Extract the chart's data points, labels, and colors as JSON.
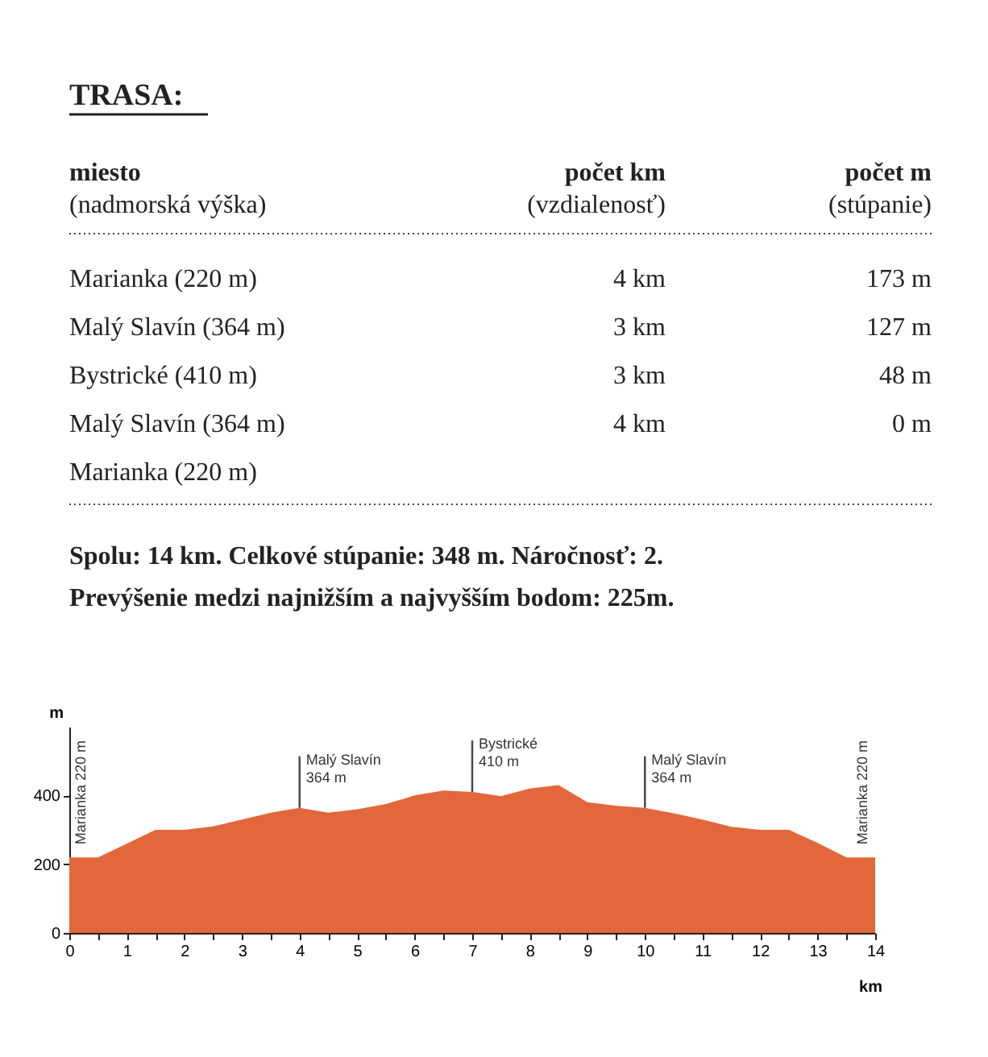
{
  "chart_data": {
    "type": "area",
    "title": "TRASA:",
    "x": [
      0,
      0.5,
      1.5,
      2,
      2.5,
      3,
      3.5,
      4,
      4.5,
      5,
      5.5,
      6,
      6.5,
      7,
      7.5,
      8,
      8.5,
      9,
      9.5,
      10,
      10.5,
      11,
      11.5,
      12,
      12.5,
      13,
      13.5,
      14
    ],
    "values": [
      220,
      220,
      300,
      300,
      310,
      330,
      350,
      364,
      350,
      360,
      375,
      400,
      414,
      410,
      398,
      420,
      430,
      380,
      370,
      364,
      348,
      330,
      309,
      300,
      300,
      262,
      220,
      220
    ],
    "color": "#e2673a",
    "xlabel": "km",
    "ylabel": "m",
    "xlim": [
      0,
      14
    ],
    "ylim": [
      0,
      600
    ],
    "xticks": [
      0,
      {
        "value": 0.5,
        "label": null
      },
      1,
      {
        "value": 1.5,
        "label": null
      },
      2,
      {
        "value": 2.5,
        "label": null
      },
      3,
      {
        "value": 3.5,
        "label": null
      },
      4,
      {
        "value": 4.5,
        "label": null
      },
      5,
      {
        "value": 5.5,
        "label": null
      },
      6,
      {
        "value": 6.5,
        "label": null
      },
      7,
      {
        "value": 7.5,
        "label": null
      },
      8,
      {
        "value": 8.5,
        "label": null
      },
      9,
      {
        "value": 9.5,
        "label": null
      },
      10,
      {
        "value": 10.5,
        "label": null
      },
      11,
      {
        "value": 11.5,
        "label": null
      },
      12,
      {
        "value": 12.5,
        "label": null
      },
      13,
      {
        "value": 13.5,
        "label": null
      },
      14
    ],
    "yticks": [
      0,
      200,
      400
    ],
    "annotations": [
      "miesto",
      "(nadmorská výška)",
      "počet km",
      "(vzdialenosť)",
      "počet m",
      "(stúpanie)",
      "Marianka (220 m)",
      "4 km",
      "173 m",
      "Malý Slavín (364 m)",
      "3 km",
      "127 m",
      "Bystrické (410 m)",
      "3 km",
      "48 m",
      "Malý Slavín (364 m)",
      "4 km",
      "0 m",
      "Marianka (220 m)",
      "Spolu: 14 km. Celkové stúpanie: 348 m. Náročnosť: 2.",
      "Prevýšenie medzi najnižším a najvyšším bodom: 225m.",
      {
        "text": "Marianka 220 m",
        "x": 0,
        "y": 220
      },
      {
        "text": "Malý Slavín\n364 m",
        "x": 4,
        "y": 364
      },
      {
        "text": "Bystrické\n410 m",
        "x": 7,
        "y": 410
      },
      {
        "text": "Malý Slavín\n364 m",
        "x": 10,
        "y": 364
      },
      {
        "text": "Marianka 220 m",
        "x": 14,
        "y": 220
      }
    ]
  }
}
